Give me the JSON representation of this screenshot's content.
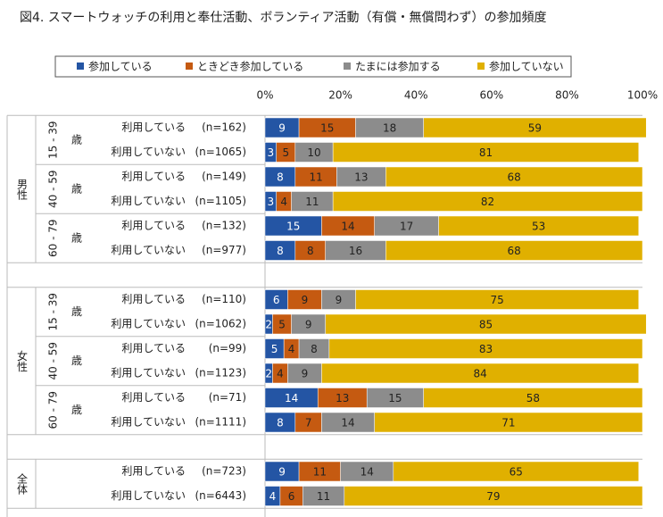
{
  "chart_data": {
    "type": "bar",
    "orientation": "horizontal",
    "stacked": true,
    "title": "図4. スマートウォッチの利用と奉仕活動、ボランティア活動（有償・無償問わず）の参加頻度",
    "series": [
      {
        "name": "参加している",
        "color": "#2455a4",
        "values": [
          9,
          3,
          8,
          3,
          15,
          8,
          6,
          2,
          5,
          2,
          14,
          8,
          9,
          4
        ]
      },
      {
        "name": "ときどき参加している",
        "color": "#c55a11",
        "values": [
          15,
          5,
          11,
          4,
          14,
          8,
          9,
          5,
          4,
          4,
          13,
          7,
          11,
          6
        ]
      },
      {
        "name": "たまには参加する",
        "color": "#8c8c8c",
        "values": [
          18,
          10,
          13,
          11,
          17,
          16,
          9,
          9,
          8,
          9,
          15,
          14,
          14,
          11
        ]
      },
      {
        "name": "参加していない",
        "color": "#e0b000",
        "values": [
          59,
          81,
          68,
          82,
          53,
          68,
          75,
          85,
          83,
          84,
          58,
          71,
          65,
          79
        ]
      }
    ],
    "categories": [
      "利用している",
      "利用していない",
      "利用している",
      "利用していない",
      "利用している",
      "利用していない",
      "利用している",
      "利用していない",
      "利用している",
      "利用していない",
      "利用している",
      "利用していない",
      "利用している",
      "利用していない"
    ],
    "n_labels": [
      "(n=162)",
      "(n=1065)",
      "(n=149)",
      "(n=1105)",
      "(n=132)",
      "(n=977)",
      "(n=110)",
      "(n=1062)",
      "(n=99)",
      "(n=1123)",
      "(n=71)",
      "(n=1111)",
      "(n=723)",
      "(n=6443)"
    ],
    "groups": [
      {
        "label": "男性",
        "ages": [
          "15 - 39",
          "40 - 59",
          "60 - 79"
        ]
      },
      {
        "label": "女性",
        "ages": [
          "15 - 39",
          "40 - 59",
          "60 - 79"
        ]
      },
      {
        "label": "全体",
        "ages": []
      }
    ],
    "age_suffix": "歳",
    "xlim": [
      0,
      100
    ],
    "xticks": [
      {
        "value": 0,
        "label": "0%"
      },
      {
        "value": 20,
        "label": "20%"
      },
      {
        "value": 40,
        "label": "40%"
      },
      {
        "value": 60,
        "label": "60%"
      },
      {
        "value": 80,
        "label": "80%"
      },
      {
        "value": 100,
        "label": "100%"
      }
    ],
    "legend": "top",
    "grid": false
  }
}
